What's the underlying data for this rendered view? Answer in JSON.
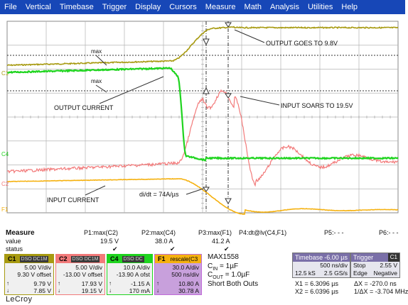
{
  "menu": [
    "File",
    "Vertical",
    "Timebase",
    "Trigger",
    "Display",
    "Cursors",
    "Measure",
    "Math",
    "Analysis",
    "Utilities",
    "Help"
  ],
  "colors": {
    "menubar": "#1747b7",
    "c1": "#a79a10",
    "c2": "#f27a7a",
    "c4": "#1fd41f",
    "f1": "#f5b10f",
    "grid": "#9a9a9a"
  },
  "annotations": {
    "max1": "max",
    "max2": "max",
    "output_goes": "OUTPUT GOES TO 9.8V",
    "output_current": "OUTPUT CURRENT",
    "input_soars": "INPUT SOARS TO 19.5V",
    "didt": "di/dt = 74A/µs",
    "input_current": "INPUT CURRENT"
  },
  "trace_labels": {
    "c1": "C1",
    "c4": "C4",
    "c2": "C2",
    "f1": "F1"
  },
  "measure": {
    "title": "Measure",
    "row_value": "value",
    "row_status": "status",
    "params": [
      {
        "name": "P1:max(C2)",
        "value": "19.5 V",
        "status": "✔"
      },
      {
        "name": "P2:max(C4)",
        "value": "38.0 A",
        "status": "✔"
      },
      {
        "name": "P3:max(F1)",
        "value": "41.2 A",
        "status": "✔"
      },
      {
        "name": "P4:dt@lv(C4,F1)",
        "value": "",
        "status": ""
      },
      {
        "name": "P5:- - -",
        "value": "",
        "status": ""
      },
      {
        "name": "P6:- - -",
        "value": "",
        "status": ""
      }
    ]
  },
  "channels": {
    "c1": {
      "tag": "C1",
      "pill": "DSO DC1M",
      "vdiv": "5.00 V/div",
      "offset": "9.30 V offset",
      "up": "9.79 V",
      "down": "7.85 V"
    },
    "c2": {
      "tag": "C2",
      "pill": "DSO DC1M",
      "vdiv": "5.00 V/div",
      "offset": "-13.00 V offset",
      "up": "17.93 V",
      "down": "19.15 V"
    },
    "c4": {
      "tag": "C4",
      "pill": "DSO DC",
      "vdiv": "10.0 A/div",
      "offset": "-13.90 A ofst",
      "up": "-1.15 A",
      "down": "170 mA"
    },
    "f1": {
      "tag": "F1",
      "pill": "rescale(C3",
      "vdiv": "30.0 A/div",
      "offset": "500 ns/div",
      "up": "10.80 A",
      "down": "30.78 A"
    }
  },
  "notes": {
    "part": "MAX1558",
    "cin": "C",
    "cin_sub": "IN",
    "cin_val": " = 1µF",
    "cout": "C",
    "cout_sub": "OUT",
    "cout_val": " = 1.0µF",
    "short": "Short Both Outs"
  },
  "timebase": {
    "label": "Timebase",
    "pos": "-6.00 µs",
    "row1_l": "",
    "row1_r": "500 ns/div",
    "row2_l": "12.5 kS",
    "row2_r": "2.5 GS/s"
  },
  "trigger": {
    "label": "Trigger",
    "ch": "C1",
    "row1_l": "Stop",
    "row1_r": "2.55 V",
    "row2_l": "Edge",
    "row2_r": "Negative"
  },
  "cursors": {
    "x1": "X1 =  6.3096 µs",
    "dx": "ΔX =  -270.0 ns",
    "x2": "X2 =  6.0396 µs",
    "inv": "1/ΔX = -3.704 MHz"
  },
  "brand": "LeCroy"
}
